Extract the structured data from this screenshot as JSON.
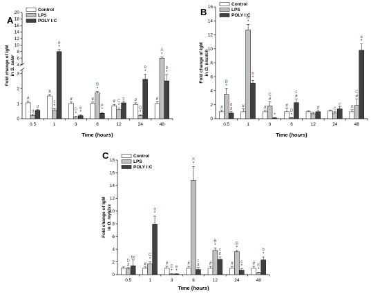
{
  "colors": {
    "Control": "#ffffff",
    "LPS": "#c0c0c0",
    "POLY I:C": "#404040",
    "annotation_black": "#000000",
    "annotation_blue": "#2e5fa6",
    "annotation_green": "#2e8b3a",
    "annotation_red": "#a0302e"
  },
  "chart_data": [
    {
      "panel": "A",
      "type": "bar",
      "ylabel": "Fold change of IgM\nin S. salar",
      "xlabel": "Time (hours)",
      "categories": [
        "0.5",
        "1",
        "3",
        "6",
        "12",
        "24",
        "48"
      ],
      "axis_break": true,
      "lower_yticks": [
        "0",
        "1",
        "2",
        "3"
      ],
      "upper_yticks": [
        "4",
        "6",
        "8",
        "10",
        "12",
        "14",
        "16",
        "18",
        "20"
      ],
      "legend": [
        "Control",
        "LPS",
        "POLY I:C"
      ],
      "series": [
        {
          "name": "Control",
          "values": [
            1.05,
            1.5,
            1.0,
            1.0,
            0.85,
            0.95,
            1.0
          ],
          "errors": [
            0.12,
            0.1,
            0.1,
            0.1,
            0.1,
            0.1,
            0.12
          ]
        },
        {
          "name": "LPS",
          "values": [
            0.2,
            0.55,
            0.1,
            1.7,
            0.6,
            0.2,
            6.0
          ],
          "errors": [
            0.1,
            0.1,
            0.05,
            0.1,
            0.1,
            0.05,
            0.3
          ]
        },
        {
          "name": "POLY I:C",
          "values": [
            0.55,
            8.0,
            0.2,
            0.35,
            1.05,
            2.6,
            2.5
          ],
          "errors": [
            0.05,
            0.6,
            0.05,
            0.08,
            0.1,
            0.35,
            0.4
          ]
        }
      ],
      "annotations": [
        [
          "#",
          "",
          ""
        ],
        [
          "#",
          "c",
          "a"
        ],
        [
          "#",
          "D",
          "e"
        ],
        [
          "#",
          "B",
          "e"
        ],
        [
          "#",
          "C",
          "c"
        ],
        [
          "#",
          "D",
          "b"
        ],
        [
          "#",
          "A",
          "b"
        ]
      ],
      "annotation_marks": [
        [
          "",
          "d",
          "d"
        ],
        [
          "",
          "*",
          "*"
        ],
        [
          "",
          "*",
          "*"
        ],
        [
          "",
          "*",
          "*"
        ],
        [
          "",
          "*",
          ""
        ],
        [
          "",
          "*",
          "*"
        ],
        [
          "",
          "*",
          "*"
        ]
      ]
    },
    {
      "panel": "B",
      "type": "bar",
      "ylabel": "Fold change of IgM\nin O. kisutch",
      "xlabel": "Time (hours)",
      "categories": [
        "0.5",
        "1",
        "3",
        "6",
        "12",
        "24",
        "48"
      ],
      "ylim": [
        0,
        16
      ],
      "yticks": [
        "0",
        "2",
        "4",
        "6",
        "8",
        "10",
        "12",
        "14",
        "16"
      ],
      "legend": [
        "Control",
        "LPS",
        "POLY I:C"
      ],
      "series": [
        {
          "name": "Control",
          "values": [
            1.0,
            1.0,
            1.0,
            1.0,
            1.0,
            1.1,
            1.0
          ],
          "errors": [
            0.2,
            0.4,
            0.2,
            0.5,
            0.1,
            0.1,
            0.3
          ]
        },
        {
          "name": "LPS",
          "values": [
            3.5,
            12.7,
            1.8,
            0.1,
            0.7,
            0.8,
            1.9
          ],
          "errors": [
            0.8,
            0.8,
            0.6,
            0.05,
            0.2,
            0.2,
            0.9
          ]
        },
        {
          "name": "POLY I:C",
          "values": [
            0.8,
            5.1,
            0.1,
            2.3,
            1.0,
            1.4,
            9.8
          ],
          "errors": [
            0.2,
            0.4,
            0.05,
            0.5,
            0.2,
            0.3,
            0.9
          ]
        }
      ],
      "annotations": [
        [
          "#",
          "B",
          "d"
        ],
        [
          "#",
          "A",
          "b"
        ],
        [
          "#",
          "C",
          ""
        ],
        [
          "#",
          "D",
          "c"
        ],
        [
          "",
          "",
          "d"
        ],
        [
          "",
          "C",
          "c"
        ],
        [
          "#",
          "C",
          "a"
        ]
      ],
      "annotation_marks": [
        [
          "",
          "*",
          "#"
        ],
        [
          "",
          "*",
          "*"
        ],
        [
          "",
          "#",
          "*"
        ],
        [
          "",
          "*",
          "#"
        ],
        [
          "",
          "",
          ""
        ],
        [
          "",
          "",
          ""
        ],
        [
          "",
          "#",
          "*"
        ]
      ]
    },
    {
      "panel": "C",
      "type": "bar",
      "ylabel": "Fold change of IgM\nin O. mykiss",
      "xlabel": "Time (hours)",
      "categories": [
        "0.5",
        "1",
        "3",
        "6",
        "12",
        "24",
        "48"
      ],
      "ylim": [
        0,
        18
      ],
      "yticks": [
        "0",
        "2",
        "4",
        "6",
        "8",
        "10",
        "12",
        "14",
        "16",
        "18"
      ],
      "legend": [
        "Control",
        "LPS",
        "POLY I:C"
      ],
      "series": [
        {
          "name": "Control",
          "values": [
            1.0,
            1.0,
            1.0,
            1.0,
            1.0,
            1.0,
            1.0
          ],
          "errors": [
            0.2,
            0.2,
            0.3,
            0.3,
            0.3,
            0.3,
            0.3
          ]
        },
        {
          "name": "LPS",
          "values": [
            0.9,
            1.7,
            0.1,
            14.8,
            3.8,
            3.6,
            0.3
          ],
          "errors": [
            0.2,
            0.3,
            0.05,
            2.2,
            0.4,
            0.2,
            0.1
          ]
        },
        {
          "name": "POLY I:C",
          "values": [
            1.4,
            7.9,
            0.1,
            0.8,
            2.4,
            0.7,
            2.3
          ],
          "errors": [
            0.9,
            1.3,
            0.05,
            0.3,
            0.4,
            0.2,
            0.5
          ]
        }
      ],
      "annotations": [
        [
          "",
          "D",
          "bc"
        ],
        [
          "#",
          "C",
          "a"
        ],
        [
          "#",
          "E",
          "e"
        ],
        [
          "#",
          "A",
          "c"
        ],
        [
          "#",
          "B",
          "c"
        ],
        [
          "#",
          "B",
          "c"
        ],
        [
          "#",
          "E",
          "b"
        ]
      ],
      "annotation_marks": [
        [
          "",
          "#",
          ""
        ],
        [
          "",
          "*",
          "*"
        ],
        [
          "",
          "*",
          "*"
        ],
        [
          "",
          "*",
          "#"
        ],
        [
          "",
          "*",
          "#"
        ],
        [
          "",
          "*",
          "*"
        ],
        [
          "",
          "*",
          "*"
        ]
      ]
    }
  ]
}
